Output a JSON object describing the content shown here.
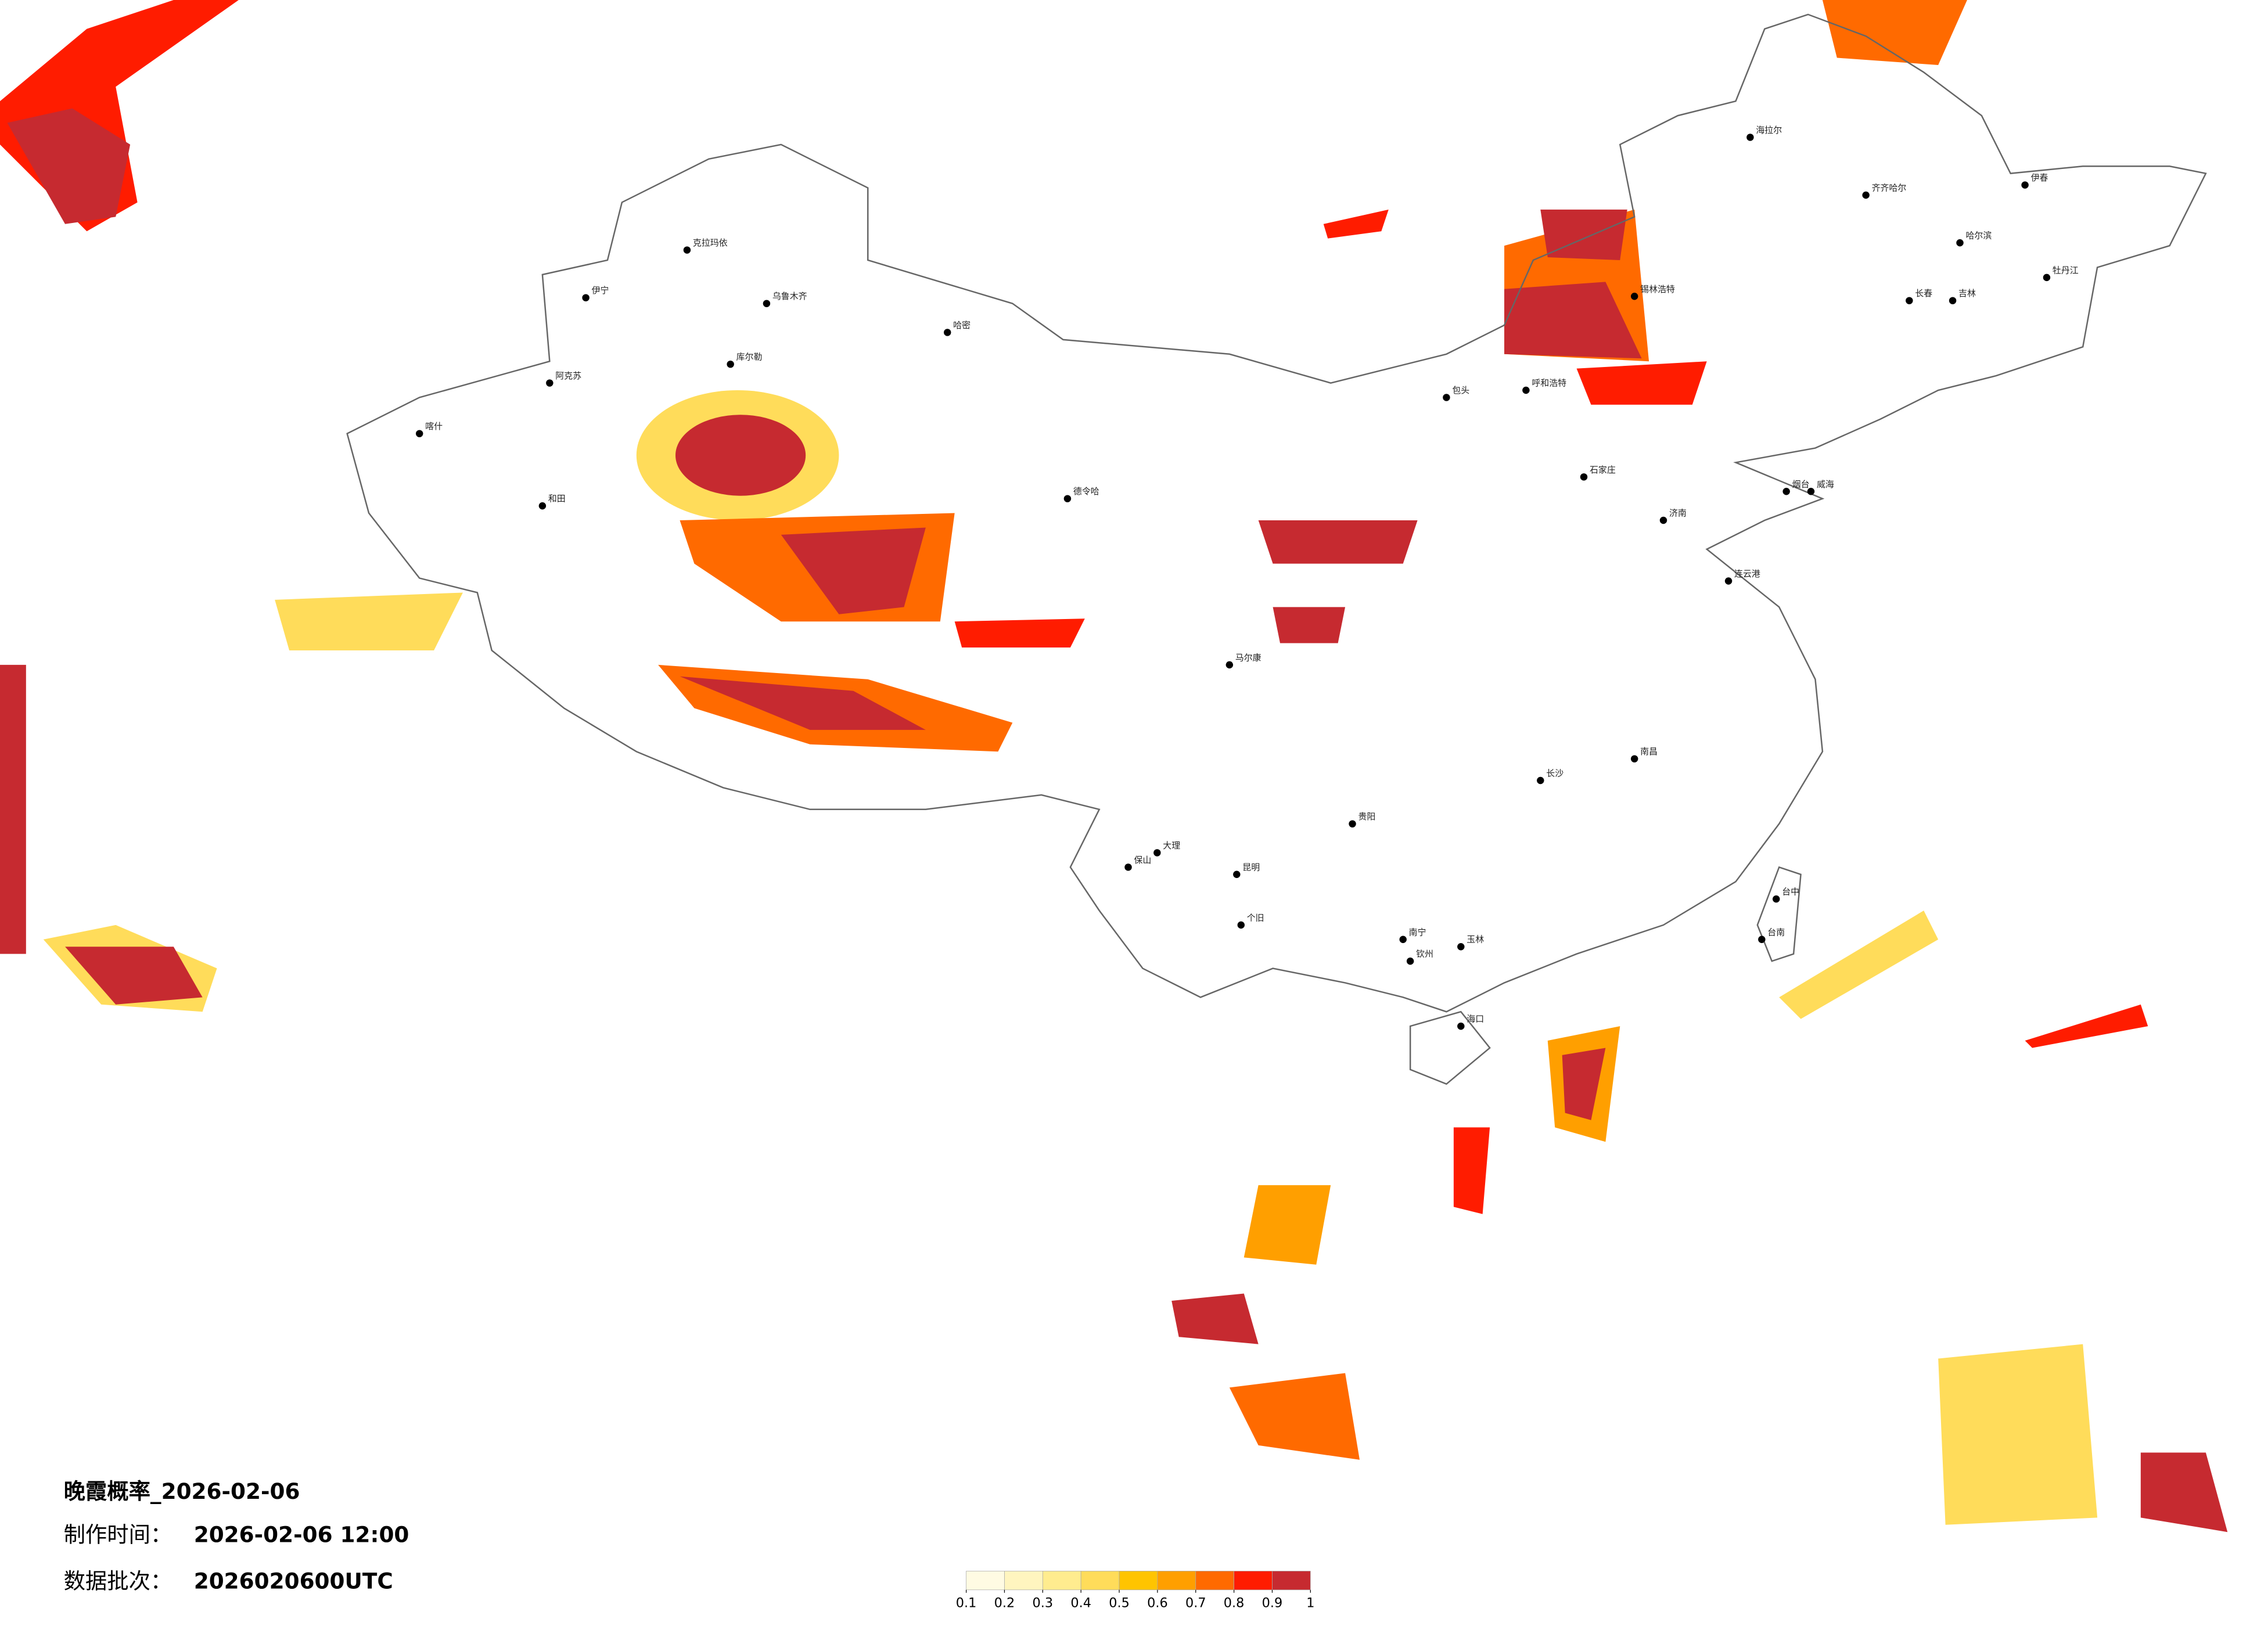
{
  "title": "晚霞概率_2026-02-06",
  "made_label": "制作时间：",
  "made_time": "2026-02-06 12:00",
  "batch_label": "数据批次：",
  "batch": "2026020600UTC",
  "colorbar": {
    "ticks": [
      0.1,
      0.2,
      0.3,
      0.4,
      0.5,
      0.6,
      0.7,
      0.8,
      0.9,
      1
    ],
    "colors": [
      "#fffbe3",
      "#fff5bf",
      "#ffec8f",
      "#ffdc5a",
      "#ffc400",
      "#ff9f00",
      "#ff6a00",
      "#ff1c00",
      "#c62a30"
    ]
  },
  "cities": [
    "克拉玛依",
    "乌鲁木齐",
    "伊宁",
    "阿克苏",
    "库尔勒",
    "哈密",
    "和田",
    "喀什",
    "德令哈",
    "马尔康",
    "大理",
    "保山",
    "个旧",
    "昆明",
    "贵阳",
    "南宁",
    "钦州",
    "玉林",
    "海口",
    "长沙",
    "南昌",
    "石家庄",
    "济南",
    "呼和浩特",
    "包头",
    "锡林浩特",
    "海拉尔",
    "齐齐哈尔",
    "哈尔滨",
    "伊春",
    "牡丹江",
    "长春",
    "吉林",
    "威海",
    "烟台",
    "连云港",
    "台中",
    "台南"
  ]
}
